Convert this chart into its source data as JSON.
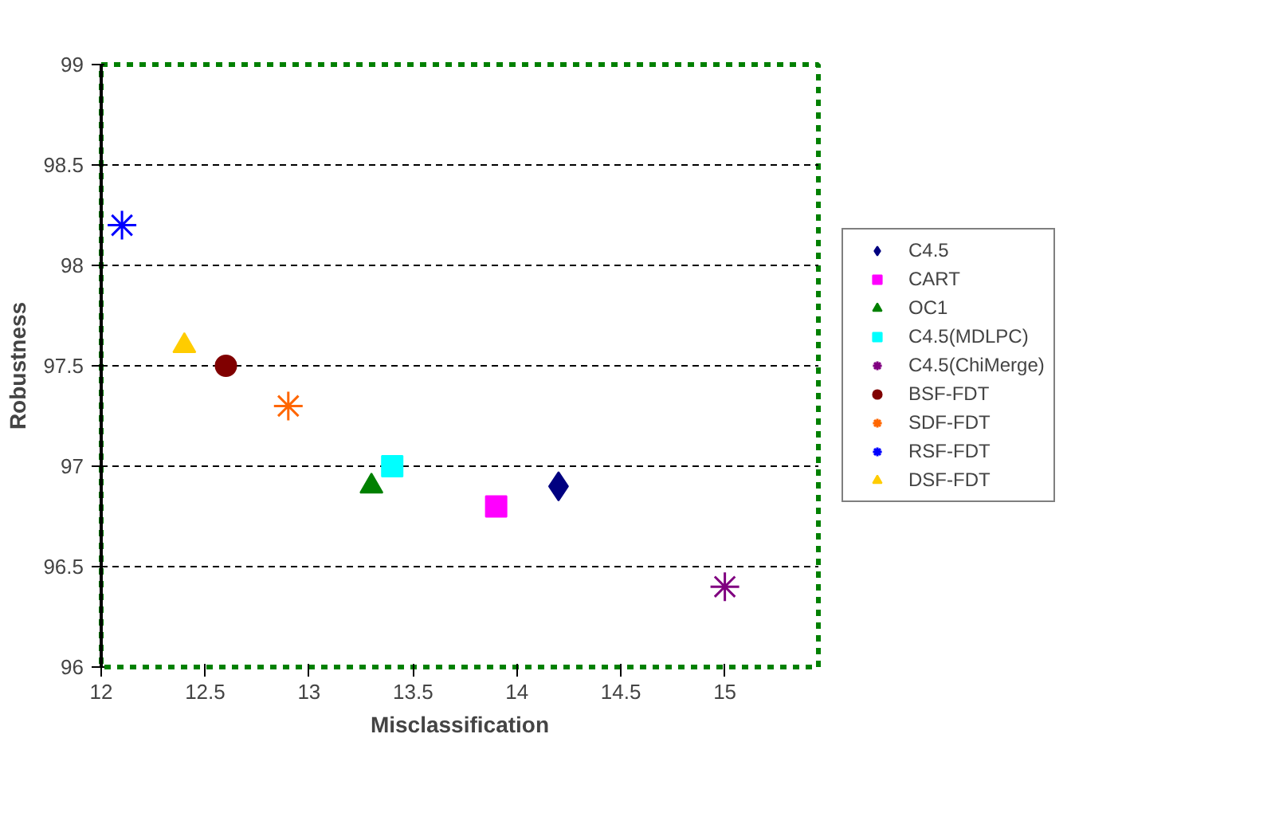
{
  "chart_data": {
    "type": "scatter",
    "xlabel": "Misclassification",
    "ylabel": "Robustness",
    "xlim": [
      12,
      15.45
    ],
    "ylim": [
      96,
      99
    ],
    "xticks": [
      12,
      12.5,
      13,
      13.5,
      14,
      14.5,
      15
    ],
    "yticks": [
      96,
      96.5,
      97,
      97.5,
      98,
      98.5,
      99
    ],
    "grid": "y",
    "legend": "right",
    "series": [
      {
        "name": "C4.5",
        "color": "#000080",
        "marker": "diamond",
        "x": [
          14.2
        ],
        "values": [
          96.9
        ]
      },
      {
        "name": "CART",
        "color": "#ff00ff",
        "marker": "square",
        "x": [
          13.9
        ],
        "values": [
          96.8
        ]
      },
      {
        "name": "OC1",
        "color": "#008000",
        "marker": "triangle",
        "x": [
          13.3
        ],
        "values": [
          96.9
        ]
      },
      {
        "name": "C4.5(MDLPC)",
        "color": "#00ffff",
        "marker": "square",
        "x": [
          13.4
        ],
        "values": [
          97.0
        ]
      },
      {
        "name": "C4.5(ChiMerge)",
        "color": "#800080",
        "marker": "cross",
        "x": [
          15.0
        ],
        "values": [
          96.4
        ]
      },
      {
        "name": "BSF-FDT",
        "color": "#800000",
        "marker": "circle",
        "x": [
          12.6
        ],
        "values": [
          97.5
        ]
      },
      {
        "name": "SDF-FDT",
        "color": "#ff6600",
        "marker": "cross",
        "x": [
          12.9
        ],
        "values": [
          97.3
        ]
      },
      {
        "name": "RSF-FDT",
        "color": "#0000ff",
        "marker": "cross",
        "x": [
          12.1
        ],
        "values": [
          98.2
        ]
      },
      {
        "name": "DSF-FDT",
        "color": "#ffcc00",
        "marker": "triangle",
        "x": [
          12.4
        ],
        "values": [
          97.6
        ]
      }
    ]
  }
}
